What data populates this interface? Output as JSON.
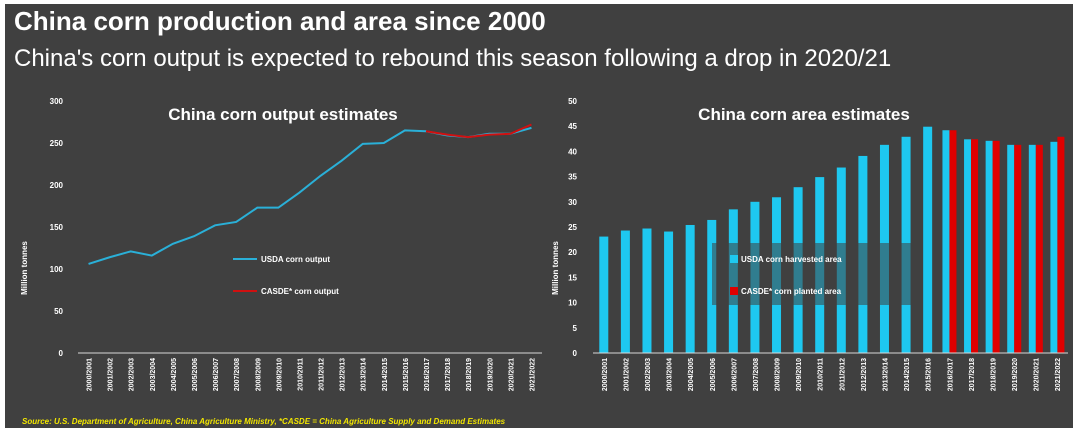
{
  "title": "China corn production and area since 2000",
  "subtitle": "China's corn output is expected to rebound this season following a drop in 2020/21",
  "source": "Source: U.S. Department of Agriculture, China Agriculture Ministry, *CASDE = China Agriculture Supply and Demand Estimates",
  "colors": {
    "background": "#404040",
    "usda": "#2ab0d8",
    "usda_bar": "#1ec8f0",
    "casde": "#d01010",
    "text": "#ffffff"
  },
  "chart_data": [
    {
      "type": "line",
      "title": "China corn output estimates",
      "ylabel": "Million tonnes",
      "ylim": [
        0,
        300
      ],
      "yticks": [
        "0",
        "50",
        "100",
        "150",
        "200",
        "250",
        "300"
      ],
      "grid": false,
      "legend_placement": "center",
      "categories": [
        "2000/2001",
        "2001/2002",
        "2002/2003",
        "2003/2004",
        "2004/2005",
        "2005/2006",
        "2006/2007",
        "2007/2008",
        "2008/2009",
        "2009/2010",
        "2010/2011",
        "2011/2012",
        "2012/2013",
        "2013/2014",
        "2014/2015",
        "2015/2016",
        "2016/2017",
        "2017/2018",
        "2018/2019",
        "2019/2020",
        "2020/2021",
        "2021/2022"
      ],
      "series": [
        {
          "name": "USDA corn output",
          "color": "#2ab0d8",
          "values": [
            106,
            114,
            121,
            116,
            130,
            139,
            152,
            156,
            173,
            173,
            191,
            211,
            229,
            249,
            250,
            265,
            264,
            259,
            257,
            261,
            261,
            268
          ]
        },
        {
          "name": "CASDE* corn output",
          "color": "#d01010",
          "values": [
            null,
            null,
            null,
            null,
            null,
            null,
            null,
            null,
            null,
            null,
            null,
            null,
            null,
            null,
            null,
            null,
            264,
            260,
            257,
            260,
            261,
            272
          ]
        }
      ]
    },
    {
      "type": "bar",
      "title": "China corn area estimates",
      "ylabel": "Million tonnes",
      "ylim": [
        0,
        50
      ],
      "yticks": [
        "0",
        "5",
        "10",
        "15",
        "20",
        "25",
        "30",
        "35",
        "40",
        "45",
        "50"
      ],
      "grid": false,
      "legend_placement": "center",
      "categories": [
        "2000/2001",
        "2001/2002",
        "2002/2003",
        "2003/2004",
        "2004/2005",
        "2005/2006",
        "2006/2007",
        "2007/2008",
        "2008/2009",
        "2009/2010",
        "2010/2011",
        "2011/2012",
        "2012/2013",
        "2013/2014",
        "2014/2015",
        "2015/2016",
        "2016/2017",
        "2017/2018",
        "2018/2019",
        "2019/2020",
        "2020/2021",
        "2021/2022"
      ],
      "series": [
        {
          "name": "USDA corn harvested area",
          "color": "#1ec8f0",
          "values": [
            23.1,
            24.3,
            24.7,
            24.1,
            25.4,
            26.4,
            28.5,
            30.0,
            30.9,
            32.9,
            34.9,
            36.8,
            39.1,
            41.3,
            42.9,
            44.9,
            44.2,
            42.4,
            42.1,
            41.3,
            41.3,
            41.9
          ]
        },
        {
          "name": "CASDE* corn planted area",
          "color": "#e00000",
          "values": [
            null,
            null,
            null,
            null,
            null,
            null,
            null,
            null,
            null,
            null,
            null,
            null,
            null,
            null,
            null,
            null,
            44.2,
            42.4,
            42.1,
            41.3,
            41.3,
            42.9
          ]
        }
      ]
    }
  ]
}
